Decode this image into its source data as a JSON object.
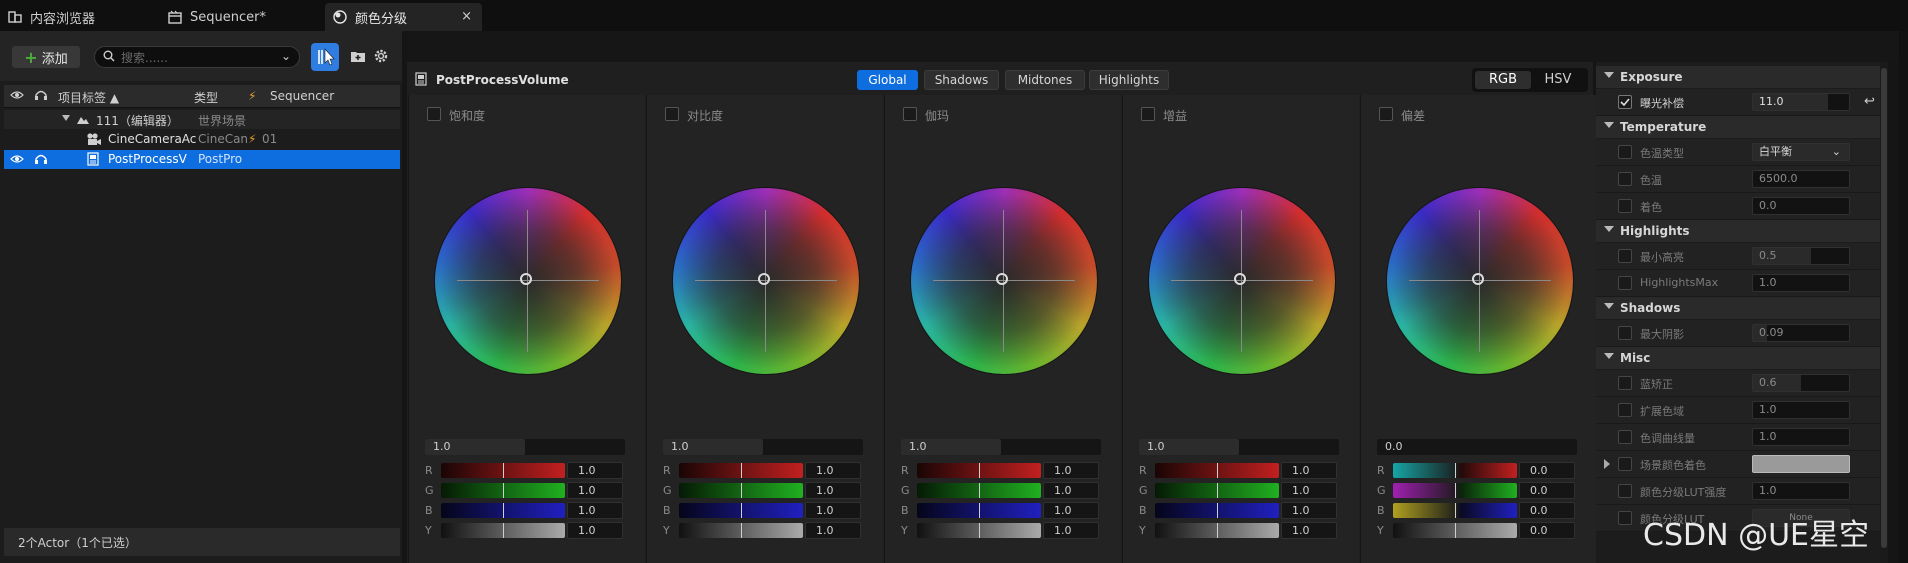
{
  "tabs": [
    {
      "label": "内容浏览器",
      "icon": "content-browser-icon"
    },
    {
      "label": "Sequencer*",
      "icon": "sequencer-icon"
    },
    {
      "label": "颜色分级",
      "icon": "color-grading-icon",
      "close": "×"
    }
  ],
  "outliner": {
    "add_label": "添加",
    "search_placeholder": "搜索......",
    "columns": [
      "项目标签 ▲",
      "类型",
      "Sequencer"
    ],
    "rows": [
      {
        "label": "111（编辑器）",
        "type": "世界场景",
        "seq": ""
      },
      {
        "label": "CineCameraAc",
        "type": "CineCan",
        "seq": "01"
      },
      {
        "label": "PostProcessV",
        "type": "PostPro",
        "seq": ""
      }
    ],
    "footer": "2个Actor（1个已选）"
  },
  "grading": {
    "title": "PostProcessVolume",
    "tabs": [
      "Global",
      "Shadows",
      "Midtones",
      "Highlights"
    ],
    "active_tab": "Global",
    "modes": [
      "RGB",
      "HSV"
    ],
    "active_mode": "RGB",
    "columns": [
      {
        "label": "饱和度",
        "master": "1.0",
        "master_fill": 0.5,
        "r": "1.0",
        "g": "1.0",
        "b": "1.0",
        "y": "1.0"
      },
      {
        "label": "对比度",
        "master": "1.0",
        "master_fill": 0.5,
        "r": "1.0",
        "g": "1.0",
        "b": "1.0",
        "y": "1.0"
      },
      {
        "label": "伽玛",
        "master": "1.0",
        "master_fill": 0.5,
        "r": "1.0",
        "g": "1.0",
        "b": "1.0",
        "y": "1.0"
      },
      {
        "label": "增益",
        "master": "1.0",
        "master_fill": 0.5,
        "r": "1.0",
        "g": "1.0",
        "b": "1.0",
        "y": "1.0"
      },
      {
        "label": "偏差",
        "master": "0.0",
        "master_fill": 0.0,
        "r": "0.0",
        "g": "0.0",
        "b": "0.0",
        "y": "0.0"
      }
    ],
    "channel_letters": [
      "R",
      "G",
      "B",
      "Y"
    ]
  },
  "details": {
    "sections": [
      {
        "title": "Exposure",
        "rows": [
          {
            "name": "曝光补偿",
            "value": "11.0",
            "checked": true
          }
        ]
      },
      {
        "title": "Temperature",
        "rows": [
          {
            "name": "色温类型",
            "value": "白平衡"
          },
          {
            "name": "色温",
            "value": "6500.0"
          },
          {
            "name": "着色",
            "value": "0.0"
          }
        ]
      },
      {
        "title": "Highlights",
        "rows": [
          {
            "name": "最小高亮",
            "value": "0.5"
          },
          {
            "name": "HighlightsMax",
            "value": "1.0"
          }
        ]
      },
      {
        "title": "Shadows",
        "rows": [
          {
            "name": "最大阴影",
            "value": "0.09"
          }
        ]
      },
      {
        "title": "Misc",
        "rows": [
          {
            "name": "蓝矫正",
            "value": "0.6"
          },
          {
            "name": "扩展色域",
            "value": "1.0"
          },
          {
            "name": "色调曲线量",
            "value": "1.0"
          },
          {
            "name": "场景颜色着色",
            "value": ""
          },
          {
            "name": "颜色分级LUT强度",
            "value": "1.0"
          },
          {
            "name": "颜色分级LUT",
            "value": "None"
          }
        ]
      }
    ]
  },
  "watermark": "CSDN @UE星空",
  "colors": {
    "accent": "#0e6ee0",
    "add_plus": "#4caf3d"
  }
}
